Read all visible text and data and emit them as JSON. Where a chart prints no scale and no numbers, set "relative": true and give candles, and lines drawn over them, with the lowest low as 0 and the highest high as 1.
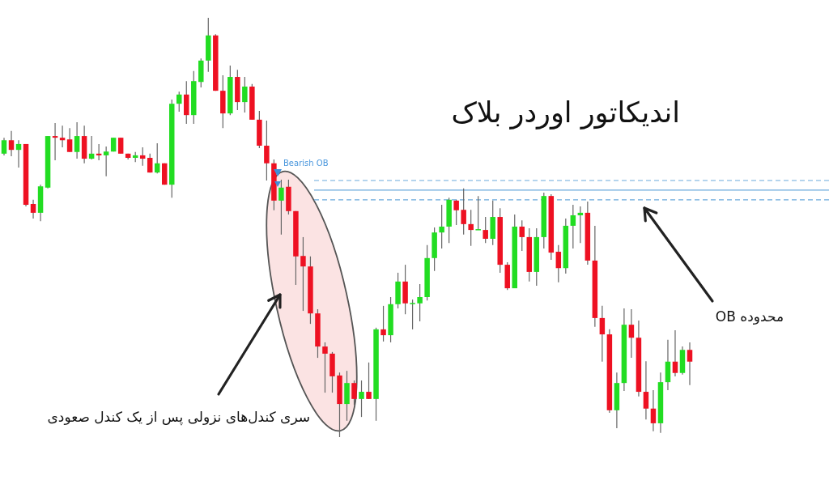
{
  "chart_data": {
    "type": "candlestick",
    "title": "اندیکاتور اوردر بلاک",
    "relative": true,
    "categories": [
      null,
      null,
      null,
      null,
      null,
      null,
      null,
      null,
      null,
      null,
      null,
      null,
      null,
      null,
      null,
      null,
      null,
      null,
      null,
      null,
      null,
      null,
      null,
      null,
      null,
      null,
      null,
      null,
      null,
      null,
      null,
      null,
      null,
      null,
      null,
      null,
      null,
      null,
      null,
      null,
      null,
      null,
      null,
      null,
      null,
      null,
      null,
      null,
      null,
      null,
      null,
      null,
      null,
      null,
      null,
      null,
      null,
      null,
      null,
      null,
      null,
      null,
      null,
      null,
      null,
      null,
      null,
      null,
      null,
      null,
      null,
      null,
      null,
      null,
      null,
      null,
      null,
      null,
      null,
      null,
      null,
      null,
      null,
      null,
      null,
      null,
      null,
      null,
      null,
      null,
      null,
      null,
      null,
      null,
      null
    ],
    "ohlc": [
      [
        0.676,
        0.714,
        0.672,
        0.708
      ],
      [
        0.708,
        0.73,
        0.67,
        0.685
      ],
      [
        0.685,
        0.708,
        0.643,
        0.699
      ],
      [
        0.699,
        0.699,
        0.55,
        0.554
      ],
      [
        0.556,
        0.566,
        0.521,
        0.535
      ],
      [
        0.535,
        0.602,
        0.515,
        0.598
      ],
      [
        0.595,
        0.718,
        0.593,
        0.718
      ],
      [
        0.718,
        0.749,
        0.66,
        0.714
      ],
      [
        0.714,
        0.743,
        0.691,
        0.708
      ],
      [
        0.71,
        0.737,
        0.68,
        0.68
      ],
      [
        0.68,
        0.751,
        0.664,
        0.718
      ],
      [
        0.718,
        0.743,
        0.653,
        0.664
      ],
      [
        0.664,
        0.718,
        0.662,
        0.676
      ],
      [
        0.676,
        0.699,
        0.66,
        0.672
      ],
      [
        0.672,
        0.693,
        0.622,
        0.681
      ],
      [
        0.681,
        0.714,
        0.681,
        0.714
      ],
      [
        0.714,
        0.714,
        0.676,
        0.676
      ],
      [
        0.676,
        0.676,
        0.662,
        0.666
      ],
      [
        0.666,
        0.68,
        0.656,
        0.672
      ],
      [
        0.672,
        0.691,
        0.647,
        0.664
      ],
      [
        0.666,
        0.676,
        0.631,
        0.631
      ],
      [
        0.631,
        0.701,
        0.629,
        0.653
      ],
      [
        0.653,
        0.653,
        0.602,
        0.602
      ],
      [
        0.602,
        0.805,
        0.571,
        0.795
      ],
      [
        0.795,
        0.824,
        0.776,
        0.817
      ],
      [
        0.817,
        0.849,
        0.747,
        0.768
      ],
      [
        0.768,
        0.873,
        0.747,
        0.849
      ],
      [
        0.847,
        0.903,
        0.834,
        0.898
      ],
      [
        0.898,
        1,
        0.871,
        0.958
      ],
      [
        0.958,
        0.961,
        0.826,
        0.826
      ],
      [
        0.826,
        0.863,
        0.737,
        0.772
      ],
      [
        0.772,
        0.886,
        0.768,
        0.859
      ],
      [
        0.859,
        0.876,
        0.78,
        0.799
      ],
      [
        0.799,
        0.859,
        0.774,
        0.836
      ],
      [
        0.836,
        0.842,
        0.757,
        0.757
      ],
      [
        0.757,
        0.778,
        0.689,
        0.695
      ],
      [
        0.695,
        0.755,
        0.612,
        0.653
      ],
      [
        0.653,
        0.662,
        0.541,
        0.564
      ],
      [
        0.564,
        0.614,
        0.483,
        0.595
      ],
      [
        0.597,
        0.614,
        0.531,
        0.539
      ],
      [
        0.539,
        0.539,
        0.363,
        0.431
      ],
      [
        0.432,
        0.477,
        0.301,
        0.407
      ],
      [
        0.407,
        0.431,
        0.27,
        0.295
      ],
      [
        0.295,
        0.305,
        0.189,
        0.216
      ],
      [
        0.216,
        0.226,
        0.106,
        0.199
      ],
      [
        0.199,
        0.203,
        0.106,
        0.145
      ],
      [
        0.147,
        0.154,
        0,
        0.079
      ],
      [
        0.079,
        0.158,
        0.039,
        0.129
      ],
      [
        0.129,
        0.135,
        0.077,
        0.091
      ],
      [
        0.091,
        0.135,
        0.048,
        0.108
      ],
      [
        0.108,
        0.178,
        0.091,
        0.091
      ],
      [
        0.091,
        0.261,
        0.039,
        0.257
      ],
      [
        0.257,
        0.313,
        0.228,
        0.243
      ],
      [
        0.243,
        0.334,
        0.226,
        0.317
      ],
      [
        0.317,
        0.392,
        0.307,
        0.371
      ],
      [
        0.371,
        0.411,
        0.293,
        0.319
      ],
      [
        0.319,
        0.328,
        0.257,
        0.32
      ],
      [
        0.319,
        0.365,
        0.276,
        0.334
      ],
      [
        0.334,
        0.458,
        0.326,
        0.427
      ],
      [
        0.427,
        0.5,
        0.396,
        0.488
      ],
      [
        0.488,
        0.554,
        0.45,
        0.502
      ],
      [
        0.502,
        0.571,
        0.463,
        0.566
      ],
      [
        0.564,
        0.566,
        0.506,
        0.541
      ],
      [
        0.542,
        0.593,
        0.483,
        0.508
      ],
      [
        0.508,
        0.542,
        0.456,
        0.494
      ],
      [
        0.494,
        0.575,
        0.494,
        0.496
      ],
      [
        0.494,
        0.525,
        0.463,
        0.473
      ],
      [
        0.473,
        0.564,
        0.458,
        0.525
      ],
      [
        0.525,
        0.546,
        0.392,
        0.411
      ],
      [
        0.411,
        0.417,
        0.351,
        0.355
      ],
      [
        0.355,
        0.531,
        0.355,
        0.502
      ],
      [
        0.502,
        0.517,
        0.444,
        0.477
      ],
      [
        0.477,
        0.498,
        0.371,
        0.394
      ],
      [
        0.394,
        0.498,
        0.361,
        0.477
      ],
      [
        0.477,
        0.583,
        0.45,
        0.575
      ],
      [
        0.575,
        0.579,
        0.423,
        0.44
      ],
      [
        0.442,
        0.458,
        0.369,
        0.403
      ],
      [
        0.403,
        0.521,
        0.39,
        0.504
      ],
      [
        0.504,
        0.554,
        0.45,
        0.529
      ],
      [
        0.529,
        0.55,
        0.463,
        0.535
      ],
      [
        0.535,
        0.562,
        0.411,
        0.421
      ],
      [
        0.421,
        0.504,
        0.263,
        0.284
      ],
      [
        0.284,
        0.313,
        0.18,
        0.245
      ],
      [
        0.245,
        0.257,
        0.058,
        0.064
      ],
      [
        0.064,
        0.154,
        0.021,
        0.129
      ],
      [
        0.129,
        0.307,
        0.11,
        0.268
      ],
      [
        0.268,
        0.305,
        0.189,
        0.237
      ],
      [
        0.237,
        0.278,
        0.097,
        0.108
      ],
      [
        0.108,
        0.181,
        0.042,
        0.068
      ],
      [
        0.068,
        0.112,
        0.014,
        0.033
      ],
      [
        0.033,
        0.154,
        0.01,
        0.131
      ],
      [
        0.131,
        0.232,
        0.112,
        0.18
      ],
      [
        0.18,
        0.255,
        0.145,
        0.153
      ],
      [
        0.153,
        0.216,
        0.149,
        0.208
      ],
      [
        0.208,
        0.226,
        0.124,
        0.18
      ]
    ],
    "ref_lines": [
      {
        "axis": "y",
        "value": 0.612,
        "color": "#6aa9dc",
        "line_style": "dashed"
      },
      {
        "axis": "y",
        "value": 0.589,
        "color": "#6aa9dc",
        "line_style": "solid"
      },
      {
        "axis": "y",
        "value": 0.566,
        "color": "#6aa9dc",
        "line_style": "dashed"
      }
    ],
    "annotations": [
      "Bearish OB",
      "محدوده OB",
      "سری کندل‌های نزولی پس از یک کندل صعودی"
    ]
  }
}
